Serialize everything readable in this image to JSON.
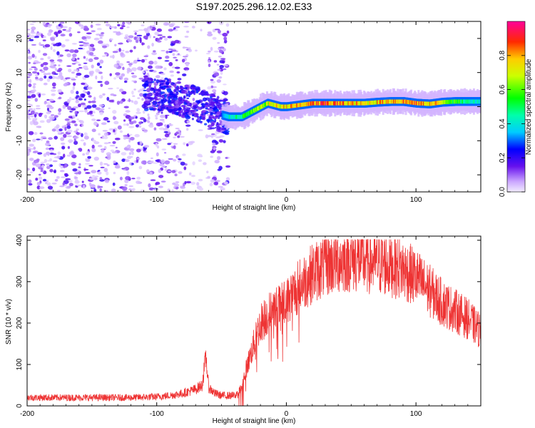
{
  "title": "S197.2025.296.12.02.E33",
  "chart_data": [
    {
      "type": "heatmap",
      "name": "spectrogram",
      "xlabel": "Height of straight line (km)",
      "ylabel": "Frequency (Hz)",
      "xlim": [
        -200,
        150
      ],
      "ylim": [
        -25,
        25
      ],
      "xticks": [
        -200,
        -100,
        0,
        100
      ],
      "yticks": [
        -20,
        -10,
        0,
        10,
        20
      ],
      "colorbar": {
        "label": "Normalized spectral amplitude",
        "range": [
          0,
          1
        ],
        "ticks": [
          0.0,
          0.2,
          0.4,
          0.6,
          0.8
        ]
      },
      "noise_region_x": [
        -200,
        -45
      ],
      "noise_band_gap_x": [
        -75,
        -60
      ],
      "ridge": {
        "x": [
          -100,
          -90,
          -80,
          -70,
          -60,
          -50,
          -45,
          -40,
          -35,
          -30,
          -25,
          -20,
          -15,
          -10,
          -5,
          0,
          10,
          20,
          30,
          40,
          50,
          60,
          70,
          80,
          90,
          100,
          110,
          120,
          130,
          140,
          150
        ],
        "freq": [
          4,
          3,
          2,
          1,
          -1,
          -2.5,
          -3,
          -3,
          -3,
          -2,
          -1,
          0,
          1,
          0.5,
          0,
          0,
          0.5,
          1,
          1,
          1,
          1,
          1,
          1.3,
          1.5,
          1.5,
          1,
          0.8,
          1.3,
          1.5,
          1.5,
          1.5
        ],
        "amplitude": [
          0.35,
          0.35,
          0.35,
          0.3,
          0.25,
          0.3,
          0.45,
          0.5,
          0.55,
          0.6,
          0.65,
          0.7,
          0.75,
          0.8,
          0.8,
          0.85,
          0.85,
          0.9,
          0.95,
          0.9,
          0.85,
          0.8,
          0.85,
          0.9,
          0.9,
          0.9,
          0.85,
          0.8,
          0.6,
          0.5,
          0.45
        ]
      }
    },
    {
      "type": "line",
      "name": "snr",
      "xlabel": "Height of straight line (km)",
      "ylabel": "SNR (10 * v/v)",
      "xlim": [
        -200,
        150
      ],
      "ylim": [
        0,
        410
      ],
      "xticks": [
        -200,
        -100,
        0,
        100
      ],
      "yticks": [
        0,
        100,
        200,
        300,
        400
      ],
      "color": "#ee3333",
      "series": [
        {
          "name": "SNR",
          "x": [
            -200,
            -180,
            -160,
            -140,
            -120,
            -100,
            -90,
            -80,
            -70,
            -65,
            -62,
            -60,
            -55,
            -50,
            -45,
            -40,
            -35,
            -30,
            -25,
            -20,
            -15,
            -10,
            -5,
            0,
            10,
            20,
            30,
            40,
            50,
            60,
            70,
            80,
            90,
            100,
            110,
            120,
            130,
            140,
            150
          ],
          "y": [
            20,
            20,
            20,
            20,
            20,
            22,
            25,
            30,
            40,
            50,
            120,
            45,
            30,
            25,
            25,
            25,
            40,
            100,
            150,
            200,
            220,
            230,
            240,
            250,
            290,
            320,
            340,
            350,
            355,
            350,
            345,
            340,
            330,
            310,
            280,
            250,
            230,
            210,
            180
          ]
        }
      ]
    }
  ]
}
